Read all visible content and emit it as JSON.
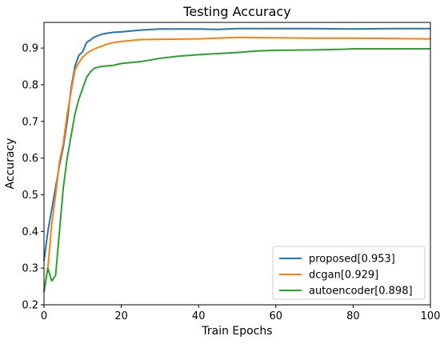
{
  "chart_data": {
    "type": "line",
    "title": "Testing Accuracy",
    "xlabel": "Train Epochs",
    "ylabel": "Accuracy",
    "xlim": [
      0,
      100
    ],
    "ylim": [
      0.2,
      0.97
    ],
    "xticks": [
      "0",
      "20",
      "40",
      "60",
      "80",
      "100"
    ],
    "yticks": [
      "0.2",
      "0.3",
      "0.4",
      "0.5",
      "0.6",
      "0.7",
      "0.8",
      "0.9"
    ],
    "grid": false,
    "legend_position": "bottom-right",
    "series": [
      {
        "name": "proposed[0.953]",
        "color": "#1f77b4",
        "points": [
          [
            0,
            0.32
          ],
          [
            1,
            0.4
          ],
          [
            2,
            0.46
          ],
          [
            3,
            0.52
          ],
          [
            4,
            0.58
          ],
          [
            5,
            0.63
          ],
          [
            6,
            0.7
          ],
          [
            7,
            0.79
          ],
          [
            8,
            0.85
          ],
          [
            9,
            0.88
          ],
          [
            10,
            0.89
          ],
          [
            11,
            0.915
          ],
          [
            12,
            0.922
          ],
          [
            13,
            0.93
          ],
          [
            14,
            0.934
          ],
          [
            15,
            0.938
          ],
          [
            16,
            0.94
          ],
          [
            18,
            0.943
          ],
          [
            20,
            0.944
          ],
          [
            25,
            0.949
          ],
          [
            30,
            0.952
          ],
          [
            40,
            0.952
          ],
          [
            45,
            0.951
          ],
          [
            50,
            0.953
          ],
          [
            60,
            0.953
          ],
          [
            70,
            0.953
          ],
          [
            80,
            0.952
          ],
          [
            90,
            0.953
          ],
          [
            100,
            0.953
          ]
        ]
      },
      {
        "name": "dcgan[0.929]",
        "color": "#ff7f0e",
        "points": [
          [
            0,
            0.24
          ],
          [
            1,
            0.3
          ],
          [
            2,
            0.42
          ],
          [
            3,
            0.5
          ],
          [
            4,
            0.59
          ],
          [
            5,
            0.64
          ],
          [
            6,
            0.72
          ],
          [
            7,
            0.78
          ],
          [
            8,
            0.84
          ],
          [
            9,
            0.86
          ],
          [
            10,
            0.875
          ],
          [
            11,
            0.885
          ],
          [
            12,
            0.892
          ],
          [
            13,
            0.897
          ],
          [
            14,
            0.902
          ],
          [
            15,
            0.905
          ],
          [
            16,
            0.91
          ],
          [
            18,
            0.915
          ],
          [
            20,
            0.918
          ],
          [
            25,
            0.923
          ],
          [
            30,
            0.924
          ],
          [
            40,
            0.925
          ],
          [
            45,
            0.927
          ],
          [
            50,
            0.929
          ],
          [
            60,
            0.928
          ],
          [
            70,
            0.927
          ],
          [
            80,
            0.927
          ],
          [
            90,
            0.926
          ],
          [
            100,
            0.925
          ]
        ]
      },
      {
        "name": "autoencoder[0.898]",
        "color": "#2ca02c",
        "points": [
          [
            0,
            0.235
          ],
          [
            1,
            0.3
          ],
          [
            2,
            0.265
          ],
          [
            3,
            0.28
          ],
          [
            4,
            0.4
          ],
          [
            5,
            0.52
          ],
          [
            6,
            0.6
          ],
          [
            7,
            0.66
          ],
          [
            8,
            0.72
          ],
          [
            9,
            0.76
          ],
          [
            10,
            0.79
          ],
          [
            11,
            0.82
          ],
          [
            12,
            0.835
          ],
          [
            13,
            0.845
          ],
          [
            14,
            0.848
          ],
          [
            15,
            0.85
          ],
          [
            18,
            0.853
          ],
          [
            20,
            0.858
          ],
          [
            25,
            0.863
          ],
          [
            30,
            0.872
          ],
          [
            35,
            0.878
          ],
          [
            40,
            0.882
          ],
          [
            45,
            0.885
          ],
          [
            50,
            0.888
          ],
          [
            55,
            0.892
          ],
          [
            60,
            0.894
          ],
          [
            70,
            0.895
          ],
          [
            78,
            0.897
          ],
          [
            80,
            0.898
          ],
          [
            90,
            0.898
          ],
          [
            100,
            0.898
          ]
        ]
      }
    ]
  }
}
